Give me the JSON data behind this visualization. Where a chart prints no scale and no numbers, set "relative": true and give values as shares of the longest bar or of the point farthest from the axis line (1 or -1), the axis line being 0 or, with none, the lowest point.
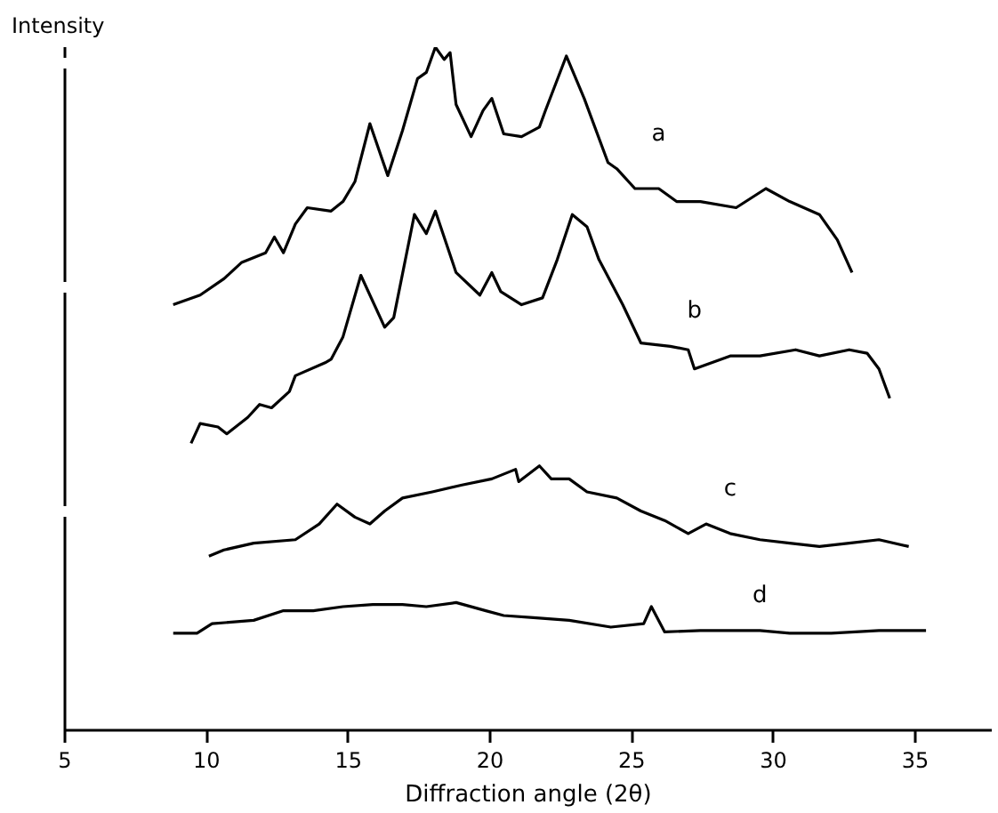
{
  "chart_data": {
    "type": "line",
    "relative": true,
    "xlabel": "Diffraction angle (2θ)",
    "ylabel": "Intensity",
    "xlim": [
      5,
      37.7
    ],
    "xticks": [
      5,
      10,
      15,
      20,
      25,
      30,
      35
    ],
    "tick_labels": "x",
    "grid": false,
    "line_style": "solid",
    "marker": "none",
    "series": [
      {
        "name": "a",
        "color": "#000000",
        "x": [
          8.82,
          9.77,
          10.61,
          11.24,
          12.08,
          12.39,
          12.71,
          13.13,
          13.55,
          14.39,
          14.81,
          15.23,
          15.76,
          16.39,
          16.91,
          17.44,
          17.75,
          18.07,
          18.38,
          18.59,
          18.8,
          19.33,
          19.75,
          20.06,
          20.48,
          21.11,
          21.74,
          21.95,
          22.69,
          23.32,
          24.16,
          24.47,
          25.11,
          25.95,
          26.58,
          27.42,
          28.68,
          29.73,
          30.57,
          31.62,
          32.25,
          32.77
        ],
        "values": [
          0.623,
          0.637,
          0.661,
          0.685,
          0.699,
          0.722,
          0.699,
          0.741,
          0.765,
          0.76,
          0.774,
          0.803,
          0.888,
          0.812,
          0.878,
          0.954,
          0.963,
          1,
          0.982,
          0.992,
          0.916,
          0.869,
          0.907,
          0.925,
          0.873,
          0.869,
          0.883,
          0.907,
          0.987,
          0.925,
          0.831,
          0.822,
          0.793,
          0.793,
          0.774,
          0.774,
          0.765,
          0.793,
          0.774,
          0.755,
          0.718,
          0.67
        ]
      },
      {
        "name": "b",
        "color": "#000000",
        "x": [
          9.45,
          9.77,
          10.4,
          10.71,
          11.45,
          11.87,
          12.29,
          12.92,
          13.13,
          14.18,
          14.39,
          14.81,
          15.44,
          16.28,
          16.6,
          17.33,
          17.75,
          18.07,
          18.8,
          19.64,
          20.06,
          20.38,
          21.11,
          21.85,
          22.37,
          22.9,
          23.42,
          23.84,
          24.68,
          25.32,
          26.36,
          26.99,
          27.21,
          28.47,
          29.52,
          30.78,
          31.62,
          32.67,
          33.3,
          33.72,
          34.1
        ],
        "values": [
          0.42,
          0.449,
          0.444,
          0.434,
          0.458,
          0.477,
          0.472,
          0.496,
          0.519,
          0.538,
          0.543,
          0.576,
          0.666,
          0.59,
          0.604,
          0.755,
          0.727,
          0.76,
          0.67,
          0.637,
          0.67,
          0.642,
          0.623,
          0.633,
          0.689,
          0.755,
          0.737,
          0.689,
          0.623,
          0.567,
          0.562,
          0.557,
          0.529,
          0.548,
          0.548,
          0.557,
          0.548,
          0.557,
          0.552,
          0.529,
          0.486
        ]
      },
      {
        "name": "c",
        "color": "#000000",
        "x": [
          10.08,
          10.61,
          11.66,
          13.13,
          13.97,
          14.6,
          15.23,
          15.76,
          16.28,
          16.91,
          17.96,
          19.01,
          20.06,
          20.9,
          21.01,
          21.74,
          22.16,
          22.79,
          23.42,
          24.47,
          25.32,
          26.16,
          26.99,
          27.62,
          28.47,
          29.52,
          30.57,
          31.62,
          32.67,
          33.72,
          34.77
        ],
        "values": [
          0.255,
          0.264,
          0.274,
          0.279,
          0.302,
          0.331,
          0.312,
          0.302,
          0.321,
          0.34,
          0.349,
          0.359,
          0.368,
          0.382,
          0.364,
          0.387,
          0.368,
          0.368,
          0.349,
          0.34,
          0.321,
          0.307,
          0.288,
          0.302,
          0.288,
          0.279,
          0.274,
          0.269,
          0.274,
          0.279,
          0.269
        ]
      },
      {
        "name": "d",
        "color": "#000000",
        "x": [
          8.82,
          9.66,
          10.19,
          11.66,
          12.71,
          13.76,
          14.81,
          15.86,
          16.91,
          17.75,
          18.8,
          19.85,
          20.48,
          21.53,
          22.79,
          24.26,
          25.42,
          25.69,
          26.16,
          27.42,
          29.52,
          30.57,
          32.04,
          33.72,
          35.38
        ],
        "values": [
          0.142,
          0.142,
          0.156,
          0.161,
          0.175,
          0.175,
          0.181,
          0.184,
          0.184,
          0.181,
          0.187,
          0.175,
          0.168,
          0.165,
          0.161,
          0.151,
          0.156,
          0.181,
          0.144,
          0.146,
          0.146,
          0.142,
          0.142,
          0.146,
          0.146
        ]
      }
    ]
  }
}
